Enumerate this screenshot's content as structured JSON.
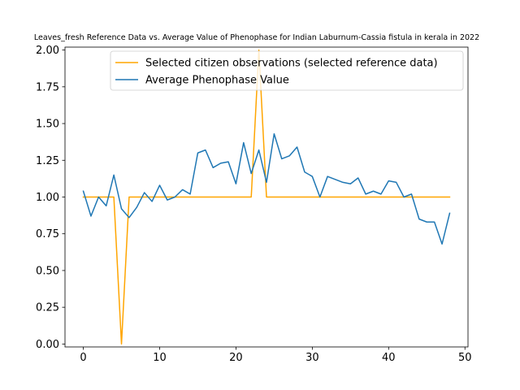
{
  "chart_data": {
    "type": "line",
    "title": "Leaves_fresh Reference Data vs. Average Value of Phenophase for Indian Laburnum-Cassia fistula in kerala in 2022",
    "xlabel": "",
    "ylabel": "",
    "xlim": [
      -2.4,
      50.4
    ],
    "ylim": [
      -0.02,
      2.02
    ],
    "xticks": [
      0,
      10,
      20,
      30,
      40,
      50
    ],
    "yticks": [
      0.0,
      0.25,
      0.5,
      0.75,
      1.0,
      1.25,
      1.5,
      1.75,
      2.0
    ],
    "xtick_labels": [
      "0",
      "10",
      "20",
      "30",
      "40",
      "50"
    ],
    "ytick_labels": [
      "0.00",
      "0.25",
      "0.50",
      "0.75",
      "1.00",
      "1.25",
      "1.50",
      "1.75",
      "2.00"
    ],
    "legend_position": "top-right",
    "grid": false,
    "series": [
      {
        "name": "Selected citizen observations (selected reference data)",
        "color": "#ffa500",
        "x": [
          0,
          1,
          2,
          3,
          4,
          5,
          6,
          7,
          8,
          9,
          10,
          11,
          12,
          13,
          14,
          15,
          16,
          17,
          18,
          19,
          20,
          21,
          22,
          23,
          24,
          25,
          26,
          27,
          28,
          29,
          30,
          31,
          32,
          33,
          34,
          35,
          36,
          37,
          38,
          39,
          40,
          41,
          42,
          43,
          44,
          45,
          46,
          47,
          48
        ],
        "values": [
          1,
          1,
          1,
          1,
          1,
          0,
          1,
          1,
          1,
          1,
          1,
          1,
          1,
          1,
          1,
          1,
          1,
          1,
          1,
          1,
          1,
          1,
          1,
          2,
          1,
          1,
          1,
          1,
          1,
          1,
          1,
          1,
          1,
          1,
          1,
          1,
          1,
          1,
          1,
          1,
          1,
          1,
          1,
          1,
          1,
          1,
          1,
          1,
          1
        ]
      },
      {
        "name": "Average Phenophase Value",
        "color": "#1f77b4",
        "x": [
          0,
          1,
          2,
          3,
          4,
          5,
          6,
          7,
          8,
          9,
          10,
          11,
          12,
          13,
          14,
          15,
          16,
          17,
          18,
          19,
          20,
          21,
          22,
          23,
          24,
          25,
          26,
          27,
          28,
          29,
          30,
          31,
          32,
          33,
          34,
          35,
          36,
          37,
          38,
          39,
          40,
          41,
          42,
          43,
          44,
          45,
          46,
          47,
          48
        ],
        "values": [
          1.04,
          0.87,
          1.0,
          0.94,
          1.15,
          0.92,
          0.86,
          0.93,
          1.03,
          0.97,
          1.08,
          0.98,
          1.0,
          1.05,
          1.02,
          1.3,
          1.32,
          1.2,
          1.23,
          1.24,
          1.09,
          1.37,
          1.16,
          1.32,
          1.1,
          1.43,
          1.26,
          1.28,
          1.34,
          1.17,
          1.14,
          1.0,
          1.14,
          1.12,
          1.1,
          1.09,
          1.13,
          1.02,
          1.04,
          1.02,
          1.11,
          1.1,
          1.0,
          1.02,
          0.85,
          0.83,
          0.83,
          0.68,
          0.89
        ]
      }
    ]
  }
}
